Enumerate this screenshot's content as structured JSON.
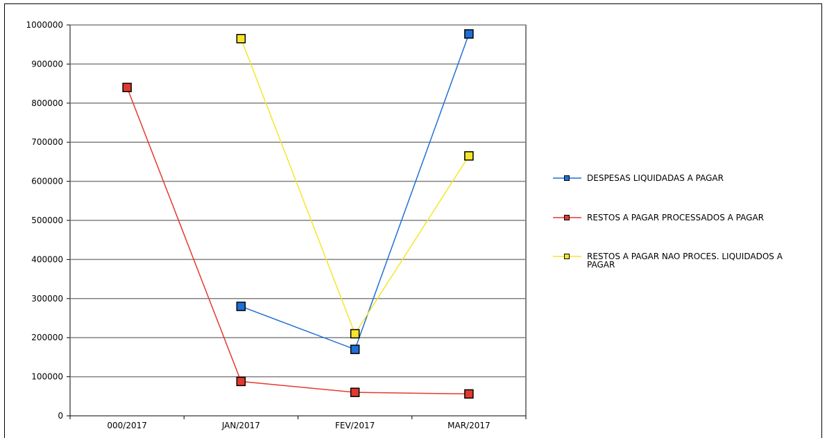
{
  "chart_data": {
    "type": "line",
    "title": "",
    "xlabel": "",
    "ylabel": "",
    "categories": [
      "000/2017",
      "JAN/2017",
      "FEV/2017",
      "MAR/2017"
    ],
    "ylim": [
      0,
      1000000
    ],
    "yticks": [
      "0",
      "100000",
      "200000",
      "300000",
      "400000",
      "500000",
      "600000",
      "700000",
      "800000",
      "900000",
      "1000000"
    ],
    "grid": true,
    "legend_position": "right",
    "series": [
      {
        "name": "DESPESAS LIQUIDADAS A PAGAR",
        "color": "#1f6fd6",
        "values": [
          null,
          280000,
          170000,
          977000
        ]
      },
      {
        "name": "RESTOS A PAGAR PROCESSADOS A PAGAR",
        "color": "#e2392f",
        "values": [
          840000,
          88000,
          60000,
          56000
        ]
      },
      {
        "name": "RESTOS A PAGAR NAO PROCES. LIQUIDADOS A PAGAR",
        "color": "#f5e62a",
        "values": [
          null,
          965000,
          210000,
          665000
        ]
      }
    ]
  }
}
